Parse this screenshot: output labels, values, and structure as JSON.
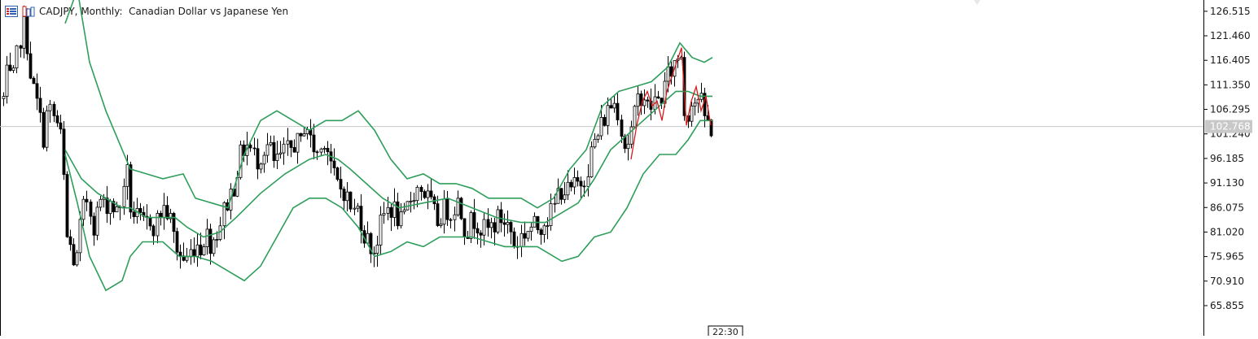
{
  "header": {
    "symbol": "CADJPY",
    "timeframe": "Monthly",
    "description": "Canadian Dollar vs Japanese Yen"
  },
  "icons": [
    "indicator-list-icon",
    "chart-bars-icon"
  ],
  "colors": {
    "background": "#ffffff",
    "bands": "#2e9e5b",
    "bullish": "#000000",
    "bearish": "#000000",
    "pattern": "#d91c1c",
    "price_line": "#c8c8c8",
    "price_label_bg": "#c8c8c8"
  },
  "axis": {
    "y_ticks": [
      "126.515",
      "121.460",
      "116.405",
      "111.350",
      "106.295",
      "101.240",
      "96.185",
      "91.130",
      "86.075",
      "81.020",
      "75.965",
      "70.910",
      "65.855"
    ],
    "current_price_label": "102.768",
    "time_label": "22:30"
  },
  "chart_data": {
    "type": "candlestick",
    "title": "CADJPY, Monthly: Canadian Dollar vs Japanese Yen",
    "ylim": [
      63.5,
      128.0
    ],
    "grid": false,
    "current_price": 102.768,
    "trend": [
      [
        0,
        104
      ],
      [
        8,
        113
      ],
      [
        16,
        112
      ],
      [
        24,
        121
      ],
      [
        30,
        124
      ],
      [
        36,
        115
      ],
      [
        42,
        109
      ],
      [
        48,
        106
      ],
      [
        52,
        99
      ],
      [
        56,
        105
      ],
      [
        62,
        106
      ],
      [
        70,
        103
      ],
      [
        76,
        99
      ],
      [
        80,
        83
      ],
      [
        84,
        76
      ],
      [
        88,
        80
      ],
      [
        92,
        71
      ],
      [
        96,
        79
      ],
      [
        100,
        84
      ],
      [
        106,
        88
      ],
      [
        110,
        86
      ],
      [
        116,
        82
      ],
      [
        122,
        88
      ],
      [
        128,
        86
      ],
      [
        134,
        88
      ],
      [
        140,
        86
      ],
      [
        146,
        84
      ],
      [
        150,
        91
      ],
      [
        156,
        93
      ],
      [
        160,
        86
      ],
      [
        166,
        84
      ],
      [
        172,
        83
      ],
      [
        178,
        82
      ],
      [
        184,
        84
      ],
      [
        190,
        82
      ],
      [
        196,
        85
      ],
      [
        202,
        86
      ],
      [
        208,
        84
      ],
      [
        212,
        81
      ],
      [
        216,
        78
      ],
      [
        222,
        76
      ],
      [
        228,
        75
      ],
      [
        234,
        77
      ],
      [
        240,
        79
      ],
      [
        246,
        78
      ],
      [
        252,
        81
      ],
      [
        258,
        79
      ],
      [
        264,
        80
      ],
      [
        270,
        83
      ],
      [
        276,
        86
      ],
      [
        280,
        88
      ],
      [
        286,
        90
      ],
      [
        292,
        95
      ],
      [
        298,
        98
      ],
      [
        304,
        99
      ],
      [
        310,
        97
      ],
      [
        316,
        96
      ],
      [
        322,
        98
      ],
      [
        330,
        99
      ],
      [
        336,
        95
      ],
      [
        342,
        96
      ],
      [
        348,
        97
      ],
      [
        356,
        98
      ],
      [
        362,
        100
      ],
      [
        368,
        98
      ],
      [
        372,
        103
      ],
      [
        376,
        104
      ],
      [
        380,
        100
      ],
      [
        386,
        98
      ],
      [
        392,
        97
      ],
      [
        398,
        101
      ],
      [
        404,
        97
      ],
      [
        410,
        92
      ],
      [
        416,
        90
      ],
      [
        422,
        90
      ],
      [
        428,
        87
      ],
      [
        434,
        85
      ],
      [
        440,
        86
      ],
      [
        446,
        81
      ],
      [
        452,
        79
      ],
      [
        458,
        77
      ],
      [
        464,
        80
      ],
      [
        470,
        84
      ],
      [
        476,
        86
      ],
      [
        482,
        86
      ],
      [
        488,
        84
      ],
      [
        494,
        82
      ],
      [
        500,
        86
      ],
      [
        506,
        89
      ],
      [
        512,
        90
      ],
      [
        518,
        90
      ],
      [
        524,
        88
      ],
      [
        530,
        86
      ],
      [
        536,
        83
      ],
      [
        542,
        85
      ],
      [
        548,
        86
      ],
      [
        554,
        85
      ],
      [
        560,
        88
      ],
      [
        566,
        85
      ],
      [
        572,
        81
      ],
      [
        578,
        83
      ],
      [
        584,
        84
      ],
      [
        590,
        82
      ],
      [
        596,
        81
      ],
      [
        602,
        82
      ],
      [
        608,
        83
      ],
      [
        614,
        84
      ],
      [
        620,
        83
      ],
      [
        626,
        82
      ],
      [
        632,
        78
      ],
      [
        638,
        80
      ],
      [
        644,
        81
      ],
      [
        650,
        82
      ],
      [
        656,
        82
      ],
      [
        662,
        82
      ],
      [
        668,
        84
      ],
      [
        674,
        84
      ],
      [
        680,
        86
      ],
      [
        686,
        90
      ],
      [
        692,
        90
      ],
      [
        698,
        89
      ],
      [
        704,
        90
      ],
      [
        710,
        91
      ],
      [
        716,
        92
      ],
      [
        722,
        95
      ],
      [
        728,
        99
      ],
      [
        734,
        101
      ],
      [
        740,
        104
      ],
      [
        746,
        106
      ],
      [
        752,
        108
      ],
      [
        758,
        107
      ],
      [
        762,
        103
      ],
      [
        766,
        99
      ],
      [
        772,
        100
      ],
      [
        778,
        104
      ],
      [
        784,
        109
      ],
      [
        790,
        110
      ],
      [
        796,
        106
      ],
      [
        802,
        108
      ],
      [
        808,
        108
      ],
      [
        814,
        110
      ],
      [
        820,
        113
      ],
      [
        826,
        115
      ],
      [
        832,
        117
      ],
      [
        836,
        119
      ],
      [
        840,
        106
      ],
      [
        844,
        105
      ],
      [
        848,
        109
      ],
      [
        852,
        108
      ],
      [
        856,
        109
      ],
      [
        860,
        108
      ],
      [
        864,
        105
      ],
      [
        868,
        104
      ],
      [
        872,
        102
      ],
      [
        875,
        103
      ]
    ],
    "bands_middle": [
      [
        80,
        98
      ],
      [
        100,
        92
      ],
      [
        120,
        89
      ],
      [
        140,
        87
      ],
      [
        150,
        86
      ],
      [
        160,
        86
      ],
      [
        180,
        84
      ],
      [
        200,
        84
      ],
      [
        215,
        84
      ],
      [
        230,
        82
      ],
      [
        250,
        80
      ],
      [
        270,
        81
      ],
      [
        290,
        84
      ],
      [
        320,
        89
      ],
      [
        350,
        93
      ],
      [
        380,
        96
      ],
      [
        400,
        97
      ],
      [
        415,
        96
      ],
      [
        430,
        94
      ],
      [
        450,
        91
      ],
      [
        470,
        88
      ],
      [
        490,
        86
      ],
      [
        520,
        87
      ],
      [
        550,
        88
      ],
      [
        580,
        86
      ],
      [
        610,
        84
      ],
      [
        640,
        83
      ],
      [
        670,
        83
      ],
      [
        690,
        85
      ],
      [
        710,
        87
      ],
      [
        730,
        92
      ],
      [
        750,
        98
      ],
      [
        770,
        101
      ],
      [
        790,
        104
      ],
      [
        810,
        107
      ],
      [
        830,
        110
      ],
      [
        845,
        110
      ],
      [
        860,
        109
      ],
      [
        875,
        109
      ]
    ],
    "bands_upper": [
      [
        80,
        124
      ],
      [
        95,
        131
      ],
      [
        110,
        116
      ],
      [
        130,
        106
      ],
      [
        150,
        98
      ],
      [
        160,
        94
      ],
      [
        180,
        93
      ],
      [
        200,
        92
      ],
      [
        225,
        93
      ],
      [
        240,
        88
      ],
      [
        260,
        87
      ],
      [
        280,
        86
      ],
      [
        300,
        97
      ],
      [
        320,
        104
      ],
      [
        340,
        106
      ],
      [
        360,
        104
      ],
      [
        380,
        102
      ],
      [
        400,
        104
      ],
      [
        420,
        104
      ],
      [
        440,
        106
      ],
      [
        460,
        102
      ],
      [
        480,
        96
      ],
      [
        500,
        92
      ],
      [
        520,
        93
      ],
      [
        540,
        91
      ],
      [
        560,
        91
      ],
      [
        580,
        90
      ],
      [
        600,
        88
      ],
      [
        620,
        88
      ],
      [
        640,
        88
      ],
      [
        660,
        86
      ],
      [
        680,
        88
      ],
      [
        700,
        94
      ],
      [
        720,
        98
      ],
      [
        740,
        107
      ],
      [
        760,
        110
      ],
      [
        780,
        111
      ],
      [
        800,
        112
      ],
      [
        820,
        115
      ],
      [
        835,
        120
      ],
      [
        850,
        117
      ],
      [
        865,
        116
      ],
      [
        875,
        117
      ]
    ],
    "bands_lower": [
      [
        80,
        97
      ],
      [
        95,
        87
      ],
      [
        110,
        76
      ],
      [
        130,
        69
      ],
      [
        150,
        71
      ],
      [
        160,
        76
      ],
      [
        175,
        79
      ],
      [
        200,
        79
      ],
      [
        220,
        76
      ],
      [
        240,
        76
      ],
      [
        260,
        75
      ],
      [
        280,
        73
      ],
      [
        300,
        71
      ],
      [
        320,
        74
      ],
      [
        340,
        80
      ],
      [
        360,
        86
      ],
      [
        380,
        88
      ],
      [
        400,
        88
      ],
      [
        420,
        86
      ],
      [
        440,
        82
      ],
      [
        460,
        76
      ],
      [
        480,
        77
      ],
      [
        500,
        79
      ],
      [
        520,
        78
      ],
      [
        540,
        80
      ],
      [
        560,
        80
      ],
      [
        580,
        80
      ],
      [
        600,
        79
      ],
      [
        620,
        78
      ],
      [
        640,
        78
      ],
      [
        660,
        78
      ],
      [
        690,
        75
      ],
      [
        710,
        76
      ],
      [
        730,
        80
      ],
      [
        750,
        81
      ],
      [
        770,
        86
      ],
      [
        790,
        93
      ],
      [
        810,
        97
      ],
      [
        830,
        97
      ],
      [
        845,
        100
      ],
      [
        860,
        104
      ],
      [
        875,
        104
      ]
    ],
    "pattern": [
      [
        775,
        96
      ],
      [
        782,
        103
      ],
      [
        789,
        108
      ],
      [
        795,
        110
      ],
      [
        801,
        107
      ],
      [
        807,
        108
      ],
      [
        813,
        104
      ],
      [
        819,
        110
      ],
      [
        825,
        113
      ],
      [
        831,
        116
      ],
      [
        837,
        119
      ],
      [
        843,
        103
      ],
      [
        849,
        108
      ],
      [
        855,
        111
      ],
      [
        861,
        106
      ],
      [
        867,
        109
      ],
      [
        873,
        103
      ]
    ]
  }
}
